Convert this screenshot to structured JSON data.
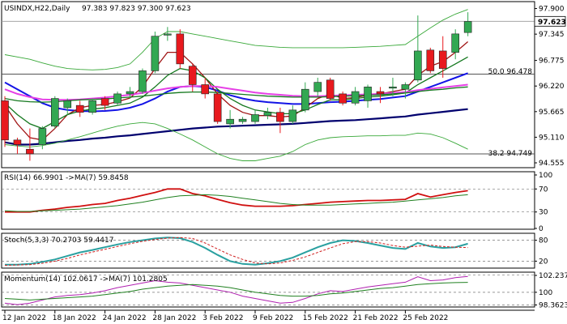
{
  "main": {
    "header": {
      "symbol": "USINDX,H22,Daily",
      "ohlc": "97.383 97.823 97.300 97.623"
    },
    "y_ticks": [
      "97.900",
      "97.345",
      "96.775",
      "96.220",
      "95.665",
      "95.110",
      "94.555"
    ],
    "ylim": [
      94.45,
      98.05
    ],
    "current_price": "97.623",
    "fib_labels": [
      {
        "text": "50.0 96.478",
        "level": 96.478
      },
      {
        "text": "38.2 94.749",
        "level": 94.749
      }
    ]
  },
  "rsi": {
    "header": "RSI(14) 66.9901  ->MA(7) 59.8458",
    "ticks": [
      "100",
      "70",
      "30",
      "0"
    ],
    "ylim": [
      0,
      100
    ]
  },
  "stoch": {
    "header": "Stoch(5,3,3) 70.2703  59.4417",
    "ticks": [
      "80",
      "20"
    ],
    "ylim": [
      0,
      100
    ]
  },
  "momentum": {
    "header": "Momentum(14) 102.0617  ->MA(7) 101.2805",
    "ticks": [
      "102.2378",
      "100",
      "98.3623"
    ],
    "ylim": [
      98.1,
      102.6
    ]
  },
  "x_labels": [
    "12 Jan 2022",
    "18 Jan 2022",
    "24 Jan 2022",
    "28 Jan 2022",
    "3 Feb 2022",
    "9 Feb 2022",
    "15 Feb 2022",
    "21 Feb 2022",
    "25 Feb 2022"
  ],
  "x_label_index": [
    0,
    4,
    8,
    12,
    16,
    20,
    24,
    28,
    32
  ],
  "colors": {
    "bull": "#32a852",
    "bear": "#e8191e",
    "navy": "#00006e",
    "blue": "#1414e6",
    "darkred": "#a01414",
    "green": "#14781e",
    "magenta": "#e640e6",
    "pink": "#e6a0e6",
    "bband": "#38a838",
    "rsi": "#d01010",
    "rsima": "#208020",
    "stochk": "#2aa0a0",
    "stochd": "#d02020",
    "mom": "#b020b0",
    "momma": "#208020"
  },
  "chart_data": [
    {
      "type": "candlestick",
      "title": "USINDX,H22,Daily",
      "ylim": [
        94.555,
        97.9
      ],
      "candles": [
        {
          "o": 95.9,
          "h": 96.0,
          "l": 94.9,
          "c": 95.05
        },
        {
          "o": 95.05,
          "h": 95.1,
          "l": 94.75,
          "c": 94.95
        },
        {
          "o": 94.85,
          "h": 95.3,
          "l": 94.6,
          "c": 94.75
        },
        {
          "o": 94.95,
          "h": 95.35,
          "l": 94.85,
          "c": 95.3
        },
        {
          "o": 95.35,
          "h": 96.0,
          "l": 95.3,
          "c": 95.95
        },
        {
          "o": 95.75,
          "h": 95.95,
          "l": 95.6,
          "c": 95.9
        },
        {
          "o": 95.8,
          "h": 95.9,
          "l": 95.55,
          "c": 95.65
        },
        {
          "o": 95.65,
          "h": 95.95,
          "l": 95.6,
          "c": 95.9
        },
        {
          "o": 95.95,
          "h": 96.0,
          "l": 95.7,
          "c": 95.8
        },
        {
          "o": 95.85,
          "h": 96.1,
          "l": 95.8,
          "c": 96.05
        },
        {
          "o": 96.05,
          "h": 96.2,
          "l": 95.95,
          "c": 96.1
        },
        {
          "o": 96.1,
          "h": 96.6,
          "l": 96.05,
          "c": 96.55
        },
        {
          "o": 96.55,
          "h": 97.4,
          "l": 96.5,
          "c": 97.3
        },
        {
          "o": 97.35,
          "h": 97.5,
          "l": 97.2,
          "c": 97.35
        },
        {
          "o": 97.35,
          "h": 97.45,
          "l": 96.6,
          "c": 96.7
        },
        {
          "o": 96.65,
          "h": 96.7,
          "l": 96.1,
          "c": 96.25
        },
        {
          "o": 96.25,
          "h": 96.4,
          "l": 95.95,
          "c": 96.05
        },
        {
          "o": 96.05,
          "h": 96.1,
          "l": 95.4,
          "c": 95.45
        },
        {
          "o": 95.4,
          "h": 95.7,
          "l": 95.3,
          "c": 95.5
        },
        {
          "o": 95.45,
          "h": 95.55,
          "l": 95.4,
          "c": 95.5
        },
        {
          "o": 95.45,
          "h": 95.7,
          "l": 95.4,
          "c": 95.6
        },
        {
          "o": 95.58,
          "h": 95.75,
          "l": 95.5,
          "c": 95.65
        },
        {
          "o": 95.65,
          "h": 95.75,
          "l": 95.2,
          "c": 95.45
        },
        {
          "o": 95.45,
          "h": 95.8,
          "l": 95.4,
          "c": 95.7
        },
        {
          "o": 95.7,
          "h": 96.3,
          "l": 95.65,
          "c": 96.15
        },
        {
          "o": 96.1,
          "h": 96.4,
          "l": 96.0,
          "c": 96.3
        },
        {
          "o": 96.35,
          "h": 96.4,
          "l": 95.9,
          "c": 95.95
        },
        {
          "o": 96.05,
          "h": 96.1,
          "l": 95.8,
          "c": 95.85
        },
        {
          "o": 95.85,
          "h": 96.2,
          "l": 95.8,
          "c": 96.1
        },
        {
          "o": 95.9,
          "h": 96.25,
          "l": 95.75,
          "c": 96.2
        },
        {
          "o": 96.1,
          "h": 96.2,
          "l": 95.85,
          "c": 96.05
        },
        {
          "o": 96.2,
          "h": 96.4,
          "l": 96.0,
          "c": 96.2
        },
        {
          "o": 96.15,
          "h": 96.3,
          "l": 95.95,
          "c": 96.25
        },
        {
          "o": 96.35,
          "h": 97.75,
          "l": 96.3,
          "c": 96.98
        },
        {
          "o": 97.0,
          "h": 97.05,
          "l": 96.5,
          "c": 96.55
        },
        {
          "o": 96.98,
          "h": 97.3,
          "l": 96.4,
          "c": 96.6
        },
        {
          "o": 96.95,
          "h": 97.45,
          "l": 96.8,
          "c": 97.35
        },
        {
          "o": 97.38,
          "h": 97.82,
          "l": 97.3,
          "c": 97.62
        }
      ],
      "series": [
        {
          "color_key": "navy",
          "values": [
            95.0,
            94.95,
            94.95,
            94.97,
            95.0,
            95.03,
            95.05,
            95.08,
            95.1,
            95.13,
            95.15,
            95.18,
            95.21,
            95.24,
            95.27,
            95.3,
            95.32,
            95.34,
            95.35,
            95.36,
            95.37,
            95.38,
            95.39,
            95.4,
            95.42,
            95.44,
            95.46,
            95.47,
            95.48,
            95.5,
            95.52,
            95.54,
            95.56,
            95.6,
            95.63,
            95.66,
            95.69,
            95.72
          ]
        },
        {
          "color_key": "blue",
          "values": [
            96.3,
            96.15,
            96.0,
            95.85,
            95.75,
            95.7,
            95.68,
            95.67,
            95.68,
            95.7,
            95.75,
            95.83,
            95.95,
            96.1,
            96.2,
            96.22,
            96.2,
            96.12,
            96.02,
            95.95,
            95.9,
            95.87,
            95.85,
            95.83,
            95.83,
            95.85,
            95.87,
            95.88,
            95.9,
            95.92,
            95.94,
            95.97,
            96.0,
            96.1,
            96.2,
            96.3,
            96.4,
            96.5
          ]
        },
        {
          "color_key": "darkred",
          "values": [
            95.8,
            95.4,
            95.1,
            95.05,
            95.3,
            95.6,
            95.75,
            95.8,
            95.82,
            95.88,
            95.96,
            96.2,
            96.6,
            96.95,
            96.95,
            96.7,
            96.4,
            96.05,
            95.8,
            95.65,
            95.58,
            95.58,
            95.55,
            95.57,
            95.75,
            95.95,
            96.05,
            95.95,
            95.97,
            96.02,
            96.05,
            96.1,
            96.15,
            96.45,
            96.65,
            96.75,
            96.95,
            97.18
          ]
        },
        {
          "color_key": "green",
          "values": [
            95.85,
            95.6,
            95.4,
            95.3,
            95.45,
            95.6,
            95.68,
            95.72,
            95.75,
            95.8,
            95.85,
            95.98,
            96.2,
            96.45,
            96.6,
            96.55,
            96.4,
            96.15,
            95.95,
            95.8,
            95.7,
            95.66,
            95.62,
            95.62,
            95.7,
            95.82,
            95.92,
            95.92,
            95.95,
            95.98,
            96.0,
            96.03,
            96.07,
            96.25,
            96.4,
            96.55,
            96.7,
            96.85
          ]
        },
        {
          "color_key": "magenta",
          "values": [
            96.15,
            96.05,
            95.98,
            95.93,
            95.92,
            95.92,
            95.93,
            95.95,
            95.97,
            96.0,
            96.03,
            96.07,
            96.12,
            96.17,
            96.2,
            96.22,
            96.22,
            96.2,
            96.16,
            96.12,
            96.08,
            96.05,
            96.03,
            96.01,
            96.0,
            96.0,
            96.01,
            96.02,
            96.03,
            96.04,
            96.05,
            96.07,
            96.09,
            96.13,
            96.16,
            96.19,
            96.22,
            96.25
          ]
        },
        {
          "color_key": "green",
          "values": [
            95.95,
            95.9,
            95.88,
            95.87,
            95.88,
            95.9,
            95.92,
            95.93,
            95.94,
            95.96,
            95.98,
            96.0,
            96.03,
            96.06,
            96.08,
            96.09,
            96.09,
            96.08,
            96.06,
            96.04,
            96.02,
            96.0,
            95.99,
            95.98,
            95.98,
            95.98,
            95.99,
            96.0,
            96.01,
            96.02,
            96.03,
            96.05,
            96.07,
            96.1,
            96.13,
            96.15,
            96.18,
            96.2
          ]
        },
        {
          "color_key": "bband",
          "values": [
            96.9,
            96.85,
            96.8,
            96.72,
            96.65,
            96.6,
            96.58,
            96.57,
            96.58,
            96.62,
            96.7,
            96.95,
            97.25,
            97.4,
            97.4,
            97.35,
            97.3,
            97.25,
            97.2,
            97.15,
            97.1,
            97.08,
            97.06,
            97.05,
            97.05,
            97.05,
            97.05,
            97.05,
            97.06,
            97.07,
            97.08,
            97.1,
            97.12,
            97.3,
            97.48,
            97.65,
            97.78,
            97.88
          ]
        },
        {
          "color_key": "bband",
          "values": [
            94.95,
            94.92,
            94.9,
            94.93,
            94.98,
            95.05,
            95.12,
            95.2,
            95.28,
            95.35,
            95.4,
            95.43,
            95.4,
            95.3,
            95.18,
            95.05,
            94.9,
            94.75,
            94.65,
            94.6,
            94.6,
            94.65,
            94.7,
            94.8,
            94.95,
            95.05,
            95.1,
            95.12,
            95.13,
            95.14,
            95.14,
            95.15,
            95.15,
            95.2,
            95.18,
            95.1,
            94.98,
            94.85
          ]
        }
      ]
    },
    {
      "type": "line",
      "title": "RSI(14)",
      "ylim": [
        0,
        100
      ],
      "series": [
        {
          "name": "RSI(14)",
          "color_key": "rsi",
          "values": [
            30,
            30,
            30,
            33,
            35,
            38,
            40,
            43,
            45,
            50,
            54,
            59,
            64,
            70,
            70,
            62,
            58,
            52,
            46,
            42,
            40,
            40,
            40,
            41,
            43,
            45,
            47,
            48,
            49,
            50,
            50,
            51,
            52,
            62,
            56,
            60,
            64,
            67
          ]
        },
        {
          "name": "MA(7)",
          "color_key": "rsima",
          "values": [
            32,
            31,
            31,
            32,
            33,
            34,
            35,
            37,
            39,
            41,
            44,
            47,
            51,
            55,
            58,
            59,
            60,
            59,
            57,
            54,
            51,
            48,
            45,
            43,
            42,
            42,
            42,
            43,
            44,
            45,
            46,
            47,
            49,
            51,
            53,
            55,
            58,
            60
          ]
        }
      ]
    },
    {
      "type": "line",
      "title": "Stoch(5,3,3)",
      "ylim": [
        0,
        100
      ],
      "series": [
        {
          "name": "%K",
          "color_key": "stochk",
          "values": [
            10,
            10,
            12,
            18,
            25,
            35,
            45,
            52,
            60,
            68,
            75,
            80,
            85,
            88,
            86,
            75,
            58,
            38,
            20,
            12,
            10,
            14,
            20,
            30,
            45,
            60,
            72,
            80,
            78,
            72,
            65,
            58,
            55,
            72,
            62,
            58,
            60,
            70
          ]
        },
        {
          "name": "%D",
          "color_key": "stochd",
          "values": [
            8,
            9,
            10,
            14,
            20,
            28,
            38,
            46,
            54,
            62,
            70,
            77,
            82,
            86,
            88,
            85,
            72,
            55,
            38,
            25,
            15,
            12,
            15,
            22,
            32,
            45,
            58,
            70,
            76,
            76,
            72,
            65,
            60,
            63,
            66,
            62,
            60,
            59
          ]
        }
      ]
    },
    {
      "type": "line",
      "title": "Momentum(14)",
      "ylim": [
        98.1,
        102.6
      ],
      "series": [
        {
          "name": "Momentum(14)",
          "color_key": "mom",
          "values": [
            98.6,
            98.4,
            98.6,
            99.0,
            99.4,
            99.6,
            99.7,
            99.9,
            100.2,
            100.6,
            100.9,
            101.2,
            101.5,
            101.3,
            101.2,
            100.9,
            100.6,
            100.3,
            100.0,
            99.5,
            99.2,
            98.9,
            98.6,
            98.7,
            99.2,
            99.8,
            100.2,
            100.1,
            100.4,
            100.7,
            100.9,
            101.1,
            101.3,
            102.0,
            101.5,
            101.6,
            101.9,
            102.06
          ]
        },
        {
          "name": "MA(7)",
          "color_key": "momma",
          "values": [
            99.2,
            99.1,
            99.0,
            99.1,
            99.2,
            99.3,
            99.4,
            99.5,
            99.7,
            99.9,
            100.1,
            100.4,
            100.6,
            100.8,
            100.9,
            101.0,
            100.9,
            100.8,
            100.6,
            100.3,
            100.0,
            99.8,
            99.6,
            99.5,
            99.5,
            99.6,
            99.8,
            99.9,
            100.1,
            100.3,
            100.5,
            100.6,
            100.8,
            101.0,
            101.1,
            101.2,
            101.25,
            101.28
          ]
        }
      ]
    }
  ]
}
